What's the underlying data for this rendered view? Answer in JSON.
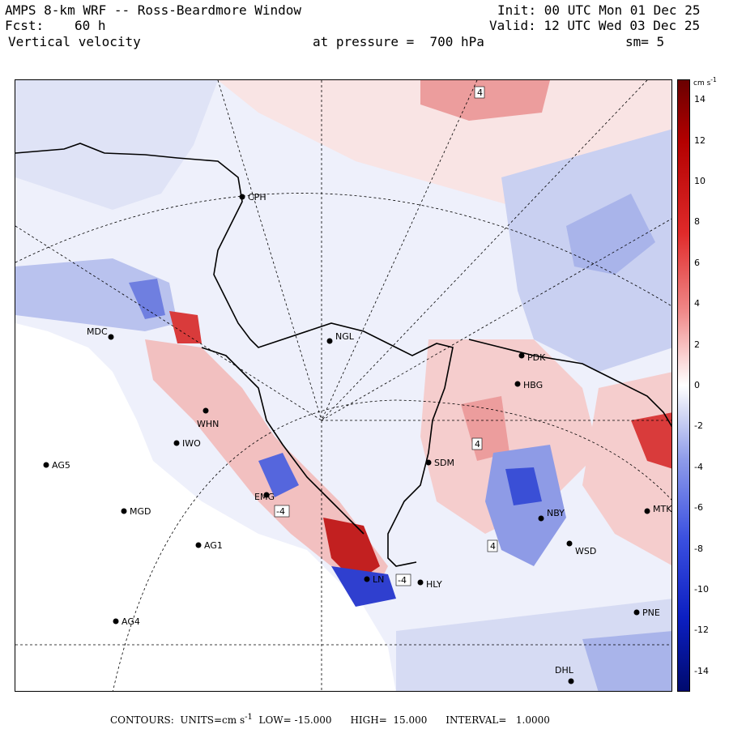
{
  "header": {
    "title": "AMPS 8-km WRF -- Ross-Beardmore Window",
    "init": "Init: 00 UTC Mon 01 Dec 25",
    "fcst_label": "Fcst:",
    "fcst_value": "60 h",
    "valid": "Valid: 12 UTC Wed 03 Dec 25",
    "field": "Vertical velocity",
    "pressure": "at pressure =  700 hPa",
    "smoothing": "sm= 5"
  },
  "colorbar": {
    "unit": "cm s",
    "unit_exp": "-1",
    "ticks": [
      "14",
      "12",
      "10",
      "8",
      "6",
      "4",
      "2",
      "0",
      "-2",
      "-4",
      "-6",
      "-8",
      "-10",
      "-12",
      "-14"
    ]
  },
  "stations": [
    {
      "name": "CPH"
    },
    {
      "name": "MDC"
    },
    {
      "name": "NGL"
    },
    {
      "name": "PDK"
    },
    {
      "name": "HBG"
    },
    {
      "name": "WHN"
    },
    {
      "name": "IWO"
    },
    {
      "name": "AG5"
    },
    {
      "name": "SDM"
    },
    {
      "name": "MGD"
    },
    {
      "name": "NBY"
    },
    {
      "name": "MTK"
    },
    {
      "name": "AG1"
    },
    {
      "name": "WSD"
    },
    {
      "name": "LN"
    },
    {
      "name": "HLY"
    },
    {
      "name": "PNE"
    },
    {
      "name": "AG4"
    },
    {
      "name": "DHL"
    },
    {
      "name": "EMG"
    }
  ],
  "contour_labels": [
    "4",
    "4",
    "4",
    "-4",
    "-4"
  ],
  "footer": {
    "contours": "CONTOURS:  UNITS=cm s",
    "units_exp": "-1",
    "low": "LOW= -15.000",
    "high": "HIGH=  15.000",
    "interval": "INTERVAL=   1.0000"
  },
  "colors": {
    "pos_light": "#f6d6d6",
    "pos_mid": "#ec9d9d",
    "pos_strong": "#d93b3b",
    "neg_light": "#d6dbf3",
    "neg_mid": "#a9b4ea",
    "neg_strong": "#3a4fd6",
    "zero": "#eef0fb"
  }
}
